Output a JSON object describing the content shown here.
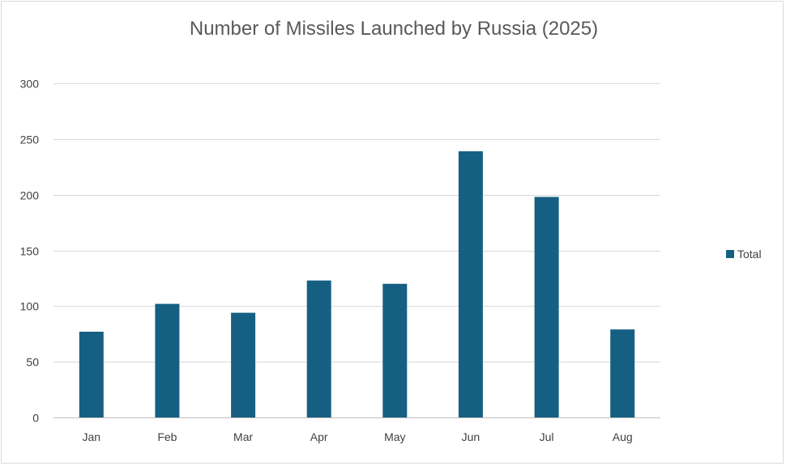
{
  "chart_data": {
    "type": "bar",
    "title": "Number of Missiles Launched by Russia (2025)",
    "xlabel": "",
    "ylabel": "",
    "categories": [
      "Jan",
      "Feb",
      "Mar",
      "Apr",
      "May",
      "Jun",
      "Jul",
      "Aug"
    ],
    "series": [
      {
        "name": "Total",
        "values": [
          77,
          102,
          94,
          123,
          120,
          239,
          198,
          79
        ],
        "color": "#156082"
      }
    ],
    "ylim": [
      0,
      300
    ],
    "yticks": [
      "0",
      "50",
      "100",
      "150",
      "200",
      "250",
      "300"
    ],
    "grid": true,
    "legend_position": "right"
  }
}
